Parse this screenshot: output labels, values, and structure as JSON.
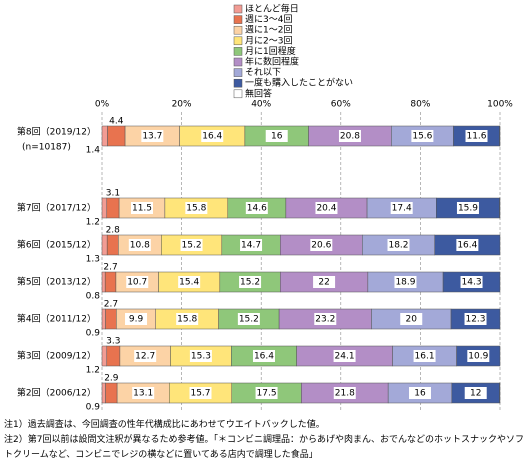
{
  "chart_data": {
    "type": "stacked-bar-horizontal",
    "categories": [
      "第8回（2019/12）",
      "第7回（2017/12）",
      "第6回（2015/12）",
      "第5回（2013/12）",
      "第4回（2011/12）",
      "第3回（2009/12）",
      "第2回（2006/12）"
    ],
    "sample_size_label": "(n=10187)",
    "series": [
      {
        "name": "ほとんど毎日",
        "color": "#f29c94",
        "values": [
          1.4,
          1.2,
          1.3,
          0.8,
          0.9,
          1.2,
          0.9
        ]
      },
      {
        "name": "週に3～4回",
        "color": "#e8734f",
        "values": [
          4.4,
          3.1,
          2.8,
          2.7,
          2.7,
          3.3,
          2.9
        ]
      },
      {
        "name": "週に1～2回",
        "color": "#fcd3a6",
        "values": [
          13.7,
          11.5,
          10.8,
          10.7,
          9.9,
          12.7,
          13.1
        ]
      },
      {
        "name": "月に2～3回",
        "color": "#ffe57a",
        "values": [
          16.4,
          15.8,
          15.2,
          15.4,
          15.8,
          15.3,
          15.7
        ]
      },
      {
        "name": "月に1回程度",
        "color": "#8fc77a",
        "values": [
          16.0,
          14.6,
          14.7,
          15.2,
          15.2,
          16.4,
          17.5
        ]
      },
      {
        "name": "年に数回程度",
        "color": "#b38ec6",
        "values": [
          20.8,
          20.4,
          20.6,
          22.0,
          23.2,
          24.1,
          21.8
        ]
      },
      {
        "name": "それ以下",
        "color": "#a3a9d8",
        "values": [
          15.6,
          17.4,
          18.2,
          18.9,
          20.0,
          16.1,
          16.0
        ]
      },
      {
        "name": "一度も購入したことがない",
        "color": "#3d5aa0",
        "values": [
          11.6,
          15.9,
          16.4,
          14.3,
          12.3,
          10.9,
          12.0
        ]
      },
      {
        "name": "無回答",
        "color": "#ffffff",
        "values": [
          0.1,
          0.1,
          0,
          0,
          0,
          0,
          0.1
        ],
        "value_labels": [
          null,
          null,
          null,
          null,
          null,
          null,
          null
        ]
      }
    ],
    "xlim": [
      0,
      100
    ],
    "xticks": [
      {
        "value": 0,
        "label": "0%"
      },
      {
        "value": 20,
        "label": "20%"
      },
      {
        "value": 40,
        "label": "40%"
      },
      {
        "value": 60,
        "label": "60%"
      },
      {
        "value": 80,
        "label": "80%"
      },
      {
        "value": 100,
        "label": "100%"
      }
    ],
    "grid": true,
    "notes": [
      "注1）過去調査は、今回調査の性年代構成比にあわせてウエイトバックした値。",
      "注2）第7回以前は設問文注釈が異なるため参考値。「＊コンビニ調理品：からあげや肉まん、おでんなどのホットスナックやソフトクリームなど、コンビニでレジの横などに置いてある店内で調理した食品」"
    ]
  }
}
